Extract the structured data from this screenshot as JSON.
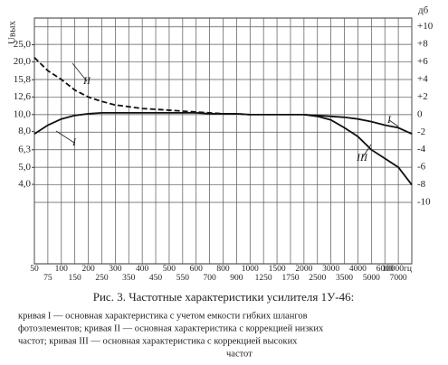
{
  "chart_data": {
    "type": "line",
    "caption": "Рис. 3. Частотные характеристики усилителя 1У-46:",
    "description": [
      "кривая I — основная характеристика с учетом емкости гибких шлангов",
      "фотоэлементов; кривая II — основная характеристика с коррекцией низких",
      "частот; кривая III — основная характеристика с коррекцией высоких",
      "частот"
    ],
    "ylabel": "Uвых",
    "y2label": "дб",
    "categories": [
      "50",
      "75",
      "100",
      "150",
      "200",
      "250",
      "300",
      "350",
      "400",
      "450",
      "500",
      "550",
      "600",
      "700",
      "800",
      "900",
      "1000",
      "1250",
      "1500",
      "1750",
      "2000",
      "2500",
      "3000",
      "3500",
      "4000",
      "5000",
      "6000",
      "7000",
      "10000гц"
    ],
    "ylim": [
      1.41,
      35.5
    ],
    "ylog": true,
    "yticks": [
      {
        "value": 25.0,
        "label": "25,0"
      },
      {
        "value": 20.0,
        "label": "20,0"
      },
      {
        "value": 15.8,
        "label": "15,8"
      },
      {
        "value": 12.6,
        "label": "12,6"
      },
      {
        "value": 10.0,
        "label": "10,0"
      },
      {
        "value": 8.0,
        "label": "8,0"
      },
      {
        "value": 6.3,
        "label": "6,3"
      },
      {
        "value": 5.0,
        "label": "5,0"
      },
      {
        "value": 4.0,
        "label": "4,0"
      }
    ],
    "y2lim": [
      -17,
      11
    ],
    "y2ticks": [
      {
        "value": 10,
        "label": "+10"
      },
      {
        "value": 8,
        "label": "+8"
      },
      {
        "value": 6,
        "label": "+6"
      },
      {
        "value": 4,
        "label": "+4"
      },
      {
        "value": 2,
        "label": "+2"
      },
      0,
      -2,
      -4,
      -6,
      -8,
      -10
    ],
    "grid": true,
    "series": [
      {
        "name": "I",
        "color": "#111",
        "axis": "y2",
        "dash": false,
        "values": [
          -2.2,
          -1.2,
          -0.5,
          -0.1,
          0.1,
          0.2,
          0.2,
          0.2,
          0.2,
          0.2,
          0.2,
          0.2,
          0.2,
          0.1,
          0.1,
          0.1,
          0,
          0,
          0,
          0,
          0,
          -0.1,
          -0.2,
          -0.3,
          -0.5,
          -0.8,
          -1.2,
          -1.5,
          -2.2
        ]
      },
      {
        "name": "II",
        "color": "#111",
        "axis": "y2",
        "dash": true,
        "values": [
          6.5,
          5,
          4,
          2.8,
          2,
          1.5,
          1.1,
          0.9,
          0.7,
          0.6,
          0.5,
          0.4,
          0.3,
          0.2,
          0.1,
          0.1,
          0,
          null,
          null,
          null,
          null,
          null,
          null,
          null,
          null,
          null,
          null,
          null,
          null
        ]
      },
      {
        "name": "III",
        "color": "#111",
        "axis": "y2",
        "dash": false,
        "values": [
          null,
          null,
          null,
          null,
          null,
          null,
          null,
          null,
          null,
          null,
          null,
          null,
          null,
          null,
          null,
          null,
          null,
          null,
          null,
          null,
          0,
          -0.2,
          -0.6,
          -1.5,
          -2.5,
          -4,
          -5,
          -6,
          -8
        ]
      }
    ]
  }
}
